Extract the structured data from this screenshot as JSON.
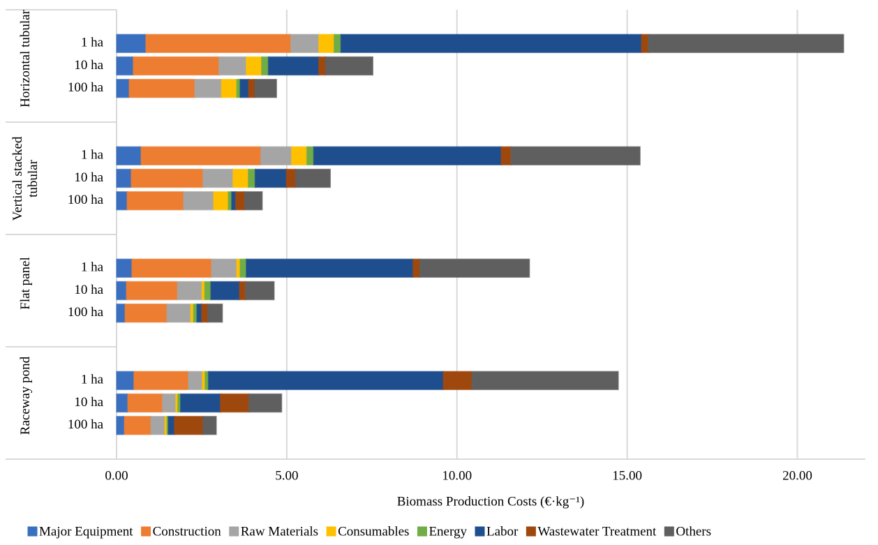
{
  "chart_data": {
    "type": "stacked-bar-horizontal",
    "x_label": "Biomass Production Costs (€·kg⁻¹)",
    "groups": [
      "Horizontal tubular",
      "Vertical stacked tubular",
      "Flat panel",
      "Raceway pond"
    ],
    "categories": [
      "1 ha",
      "10 ha",
      "100 ha",
      "1 ha",
      "10 ha",
      "100 ha",
      "1 ha",
      "10 ha",
      "100 ha",
      "1 ha",
      "10 ha",
      "100 ha"
    ],
    "xlim": [
      0,
      22
    ],
    "xticks": [
      {
        "value": 0,
        "label": "0.00"
      },
      {
        "value": 5,
        "label": "5.00"
      },
      {
        "value": 10,
        "label": "10.00"
      },
      {
        "value": 15,
        "label": "15.00"
      },
      {
        "value": 20,
        "label": "20.00"
      }
    ],
    "grid": true,
    "legend": "bottom",
    "series": [
      {
        "name": "Major Equipment",
        "color": "#3a6fc0",
        "values": [
          0.86,
          0.49,
          0.37,
          0.72,
          0.43,
          0.31,
          0.45,
          0.29,
          0.25,
          0.51,
          0.33,
          0.23
        ]
      },
      {
        "name": "Construction",
        "color": "#ed7d31",
        "values": [
          4.26,
          2.52,
          1.93,
          3.52,
          2.11,
          1.66,
          2.34,
          1.5,
          1.23,
          1.6,
          1.02,
          0.78
        ]
      },
      {
        "name": "Raw Materials",
        "color": "#a5a5a5",
        "values": [
          0.82,
          0.8,
          0.78,
          0.9,
          0.88,
          0.88,
          0.74,
          0.72,
          0.7,
          0.41,
          0.39,
          0.41
        ]
      },
      {
        "name": "Consumables",
        "color": "#ffc000",
        "values": [
          0.45,
          0.45,
          0.45,
          0.45,
          0.45,
          0.43,
          0.1,
          0.08,
          0.08,
          0.08,
          0.06,
          0.06
        ]
      },
      {
        "name": "Energy",
        "color": "#70ad47",
        "values": [
          0.2,
          0.2,
          0.1,
          0.2,
          0.2,
          0.1,
          0.18,
          0.18,
          0.1,
          0.1,
          0.08,
          0.04
        ]
      },
      {
        "name": "Labor",
        "color": "#1f4e8e",
        "values": [
          8.83,
          1.48,
          0.25,
          5.51,
          0.92,
          0.12,
          4.9,
          0.84,
          0.14,
          6.9,
          1.17,
          0.18
        ]
      },
      {
        "name": "Wastewater Treatment",
        "color": "#9e480e",
        "values": [
          0.2,
          0.2,
          0.18,
          0.29,
          0.27,
          0.27,
          0.2,
          0.18,
          0.18,
          0.84,
          0.84,
          0.84
        ]
      },
      {
        "name": "Others",
        "color": "#5f5f5f",
        "values": [
          5.74,
          1.39,
          0.64,
          3.79,
          1.02,
          0.51,
          3.22,
          0.84,
          0.43,
          4.3,
          0.96,
          0.39
        ]
      }
    ]
  }
}
